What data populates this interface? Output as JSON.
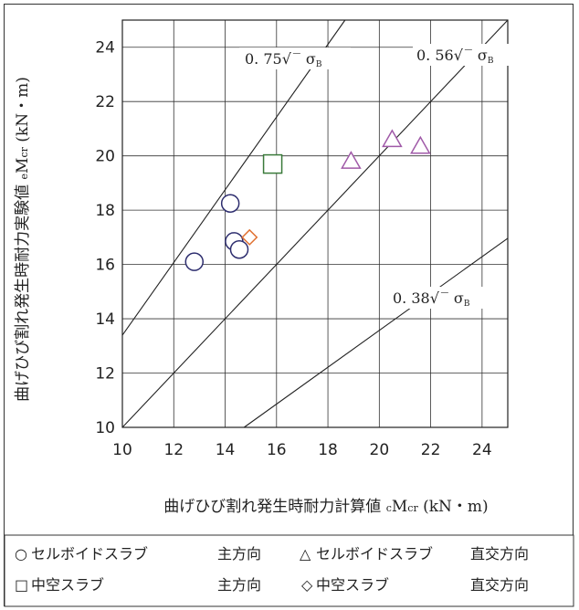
{
  "chart_data": {
    "type": "scatter",
    "title": "",
    "xlabel": "曲げひび割れ発生時耐力計算値 cMcr (kN・m)",
    "ylabel": "曲げひび割れ発生時耐力実験値 eMcr (kN・m)",
    "xlim": [
      10,
      25
    ],
    "ylim": [
      10,
      25
    ],
    "x_ticks": [
      10,
      12,
      14,
      16,
      18,
      20,
      22,
      24
    ],
    "y_ticks": [
      10,
      12,
      14,
      16,
      18,
      20,
      22,
      24
    ],
    "grid": true,
    "series": [
      {
        "name": "セルボイドスラブ 主方向",
        "marker": "circle",
        "color": "#2d2d6e",
        "points": [
          [
            12.8,
            16.1
          ],
          [
            14.2,
            18.25
          ],
          [
            14.35,
            16.85
          ],
          [
            14.55,
            16.55
          ]
        ]
      },
      {
        "name": "セルボイドスラブ 直交方向",
        "marker": "triangle",
        "color": "#a05aa8",
        "points": [
          [
            18.9,
            19.8
          ],
          [
            20.5,
            20.6
          ],
          [
            21.6,
            20.35
          ]
        ]
      },
      {
        "name": "中空スラブ 主方向",
        "marker": "square",
        "color": "#3a7a3a",
        "points": [
          [
            15.85,
            19.7
          ]
        ]
      },
      {
        "name": "中空スラブ 直交方向",
        "marker": "diamond",
        "color": "#e07030",
        "points": [
          [
            14.95,
            17.0
          ]
        ]
      }
    ],
    "reference_lines": [
      {
        "label": "0.75√ σB",
        "slope": 1.3393,
        "intercept": 0
      },
      {
        "label": "0.56√ σB",
        "slope": 1.0,
        "intercept": 0
      },
      {
        "label": "0.38√ σB",
        "slope": 0.6786,
        "intercept": 0
      }
    ]
  },
  "legend": {
    "row1_left_symbol": "○",
    "row1_left_name": "セルボイドスラブ",
    "row1_left_dir": "主方向",
    "row1_right_symbol": "△",
    "row1_right_name": "セルボイドスラブ",
    "row1_right_dir": "直交方向",
    "row2_left_symbol": "□",
    "row2_left_name": "中空スラブ",
    "row2_left_dir": "主方向",
    "row2_right_symbol": "◇",
    "row2_right_name": "中空スラブ",
    "row2_right_dir": "直交方向"
  },
  "labels": {
    "ylabel_main": "曲げひび割れ発生時耐力実験値 ",
    "ylabel_sub_pre": "e",
    "ylabel_M": "M",
    "ylabel_sub": "cr",
    "ylabel_unit": " (kN・m)",
    "xlabel_main": "曲げひび割れ発生時耐力計算値 ",
    "xlabel_sub_pre": "c",
    "xlabel_M": "M",
    "xlabel_sub": "cr",
    "xlabel_unit": " (kN・m)",
    "anno_075_num": "0. 75",
    "anno_056_num": "0. 56",
    "anno_038_num": "0. 38",
    "anno_sigma": "σ",
    "anno_B": "B"
  }
}
